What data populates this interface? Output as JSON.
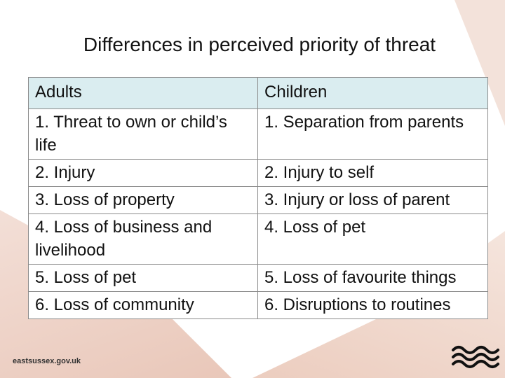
{
  "title": "Differences in perceived priority of threat",
  "table": {
    "headers": [
      "Adults",
      "Children"
    ],
    "rows": [
      [
        "1. Threat to own or child’s life",
        "1. Separation from parents"
      ],
      [
        "2. Injury",
        "2. Injury to self"
      ],
      [
        "3. Loss of property",
        "3. Injury or loss of parent"
      ],
      [
        "4. Loss of business and livelihood",
        "4. Loss of pet"
      ],
      [
        "5. Loss of pet",
        "5. Loss of favourite things"
      ],
      [
        "6. Loss of community",
        "6. Disruptions to routines"
      ]
    ]
  },
  "footer": {
    "site": "eastsussex.gov.uk"
  },
  "colors": {
    "header_bg": "#daedf0",
    "accent_bg": "#eccdbf",
    "logo": "#111111"
  },
  "icons": {
    "logo": "east-sussex-waves-logo"
  }
}
